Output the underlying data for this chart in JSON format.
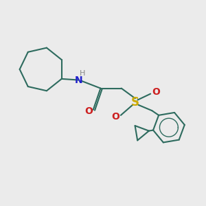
{
  "background_color": "#ebebeb",
  "bond_color": "#2d6b5e",
  "n_color": "#2020cc",
  "o_color": "#cc2020",
  "s_color": "#ccaa00",
  "h_color": "#888888",
  "line_width": 1.5,
  "fig_size": [
    3.0,
    3.0
  ],
  "dpi": 100,
  "xlim": [
    -2.8,
    3.8
  ],
  "ylim": [
    -2.8,
    2.2
  ]
}
